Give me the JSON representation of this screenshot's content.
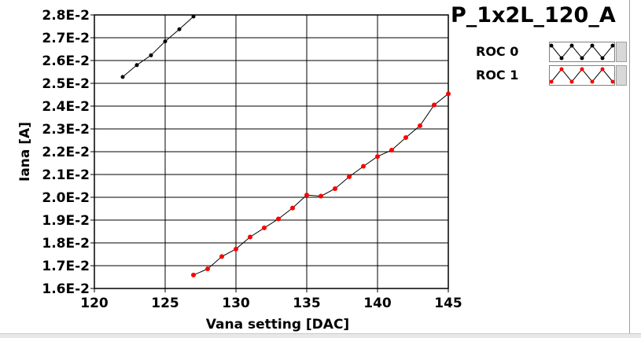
{
  "chart_data": {
    "type": "line",
    "title": "P_1x2L_120_A",
    "xlabel": "Vana setting [DAC]",
    "ylabel": "Iana [A]",
    "xlim": [
      120,
      145
    ],
    "ylim": [
      0.016,
      0.028
    ],
    "x_ticks": [
      "120",
      "125",
      "130",
      "135",
      "140",
      "145"
    ],
    "y_ticks": [
      "1.6E-2",
      "1.7E-2",
      "1.8E-2",
      "1.9E-2",
      "2.0E-2",
      "2.1E-2",
      "2.2E-2",
      "2.3E-2",
      "2.4E-2",
      "2.5E-2",
      "2.6E-2",
      "2.7E-2",
      "2.8E-2"
    ],
    "grid": true,
    "legend_position": "top-right",
    "series": [
      {
        "name": "ROC 0",
        "color": "#000000",
        "x": [
          122,
          123,
          124,
          125,
          126,
          127
        ],
        "y": [
          0.02528,
          0.0258,
          0.02623,
          0.02684,
          0.02737,
          0.02793
        ]
      },
      {
        "name": "ROC 1",
        "color": "#ff0000",
        "x": [
          127,
          128,
          129,
          130,
          131,
          132,
          133,
          134,
          135,
          136,
          137,
          138,
          139,
          140,
          141,
          142,
          143,
          144,
          145
        ],
        "y": [
          0.01659,
          0.01686,
          0.0174,
          0.01773,
          0.01826,
          0.01866,
          0.01905,
          0.01953,
          0.0201,
          0.02005,
          0.02038,
          0.0209,
          0.02136,
          0.02179,
          0.02207,
          0.02262,
          0.02314,
          0.02405,
          0.02454
        ]
      }
    ]
  }
}
